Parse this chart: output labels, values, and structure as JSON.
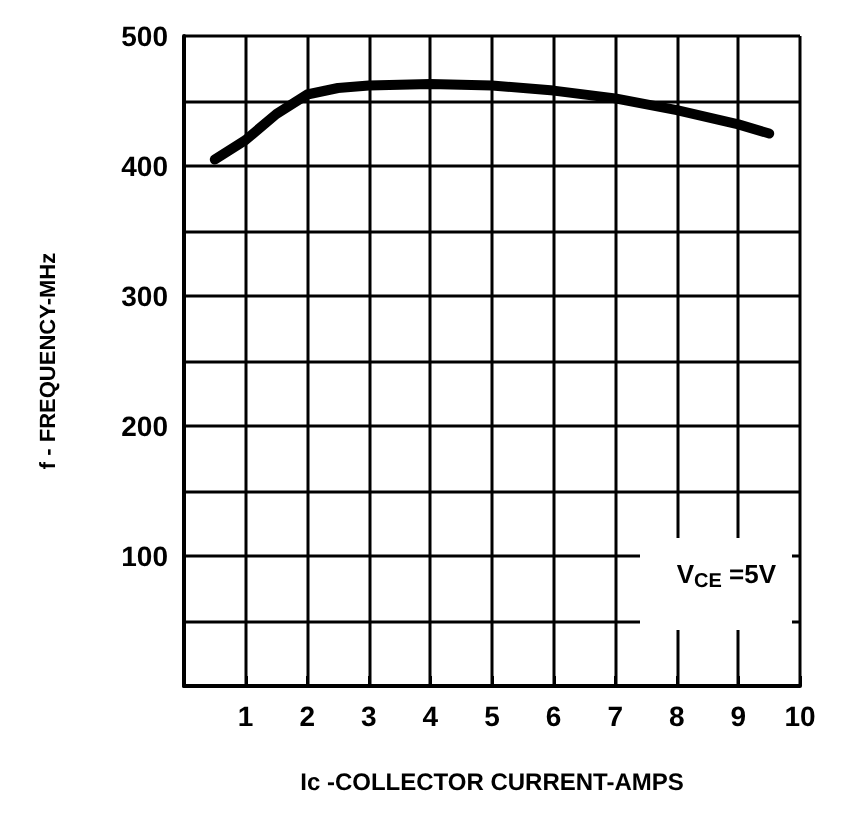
{
  "chart_data": {
    "type": "line",
    "xlabel": "Ic -COLLECTOR CURRENT-AMPS",
    "ylabel": "f - FREQUENCY-MHz",
    "x": [
      0.5,
      1,
      1.5,
      2,
      2.5,
      3,
      4,
      5,
      6,
      7,
      8,
      9,
      9.5
    ],
    "series": [
      {
        "color": "#000000",
        "values": [
          405,
          420,
          440,
          455,
          460,
          462,
          463,
          462,
          458,
          452,
          443,
          432,
          425
        ]
      }
    ],
    "xlim": [
      0,
      10
    ],
    "xticks": [
      1,
      2,
      3,
      4,
      5,
      6,
      7,
      8,
      9,
      10
    ],
    "ylim": [
      0,
      500
    ],
    "yticks": [
      {
        "value": 0,
        "label": null
      },
      {
        "value": 50,
        "label": null
      },
      100,
      {
        "value": 150,
        "label": null
      },
      200,
      {
        "value": 250,
        "label": null
      },
      300,
      {
        "value": 350,
        "label": null
      },
      400,
      {
        "value": 450,
        "label": null
      },
      500
    ],
    "grid": true,
    "marker": "none",
    "line_style": "solid",
    "annotations": [
      "V$_{CE}$ =5V"
    ]
  }
}
